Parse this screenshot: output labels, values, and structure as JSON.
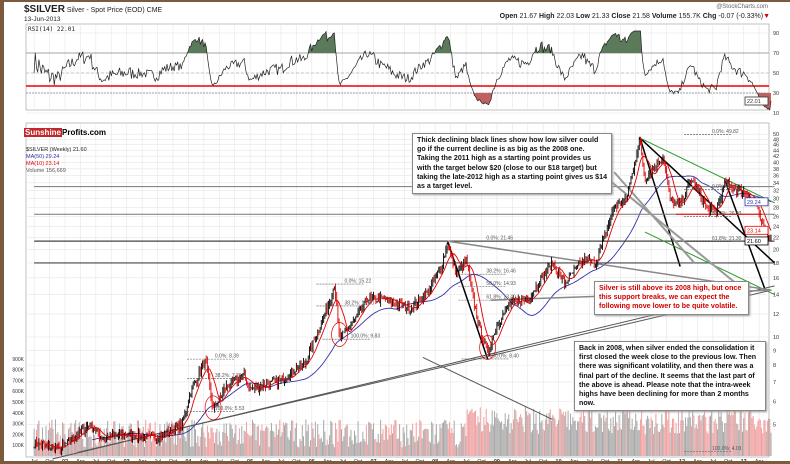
{
  "header": {
    "symbol": "$SILVER",
    "description": "Silver - Spot Price (EOD)",
    "exchange": "CME",
    "date": "13-Jun-2013",
    "credit": "@StockCharts.com",
    "open_label": "Open",
    "open": "21.67",
    "high_label": "High",
    "high": "22.03",
    "low_label": "Low",
    "low": "21.33",
    "close_label": "Close",
    "close": "21.58",
    "volume_label": "Volume",
    "volume": "155.7K",
    "chg_label": "Chg",
    "chg": "-0.07 (-0.33%)"
  },
  "logo": {
    "part1": "Sunshine",
    "part2": "Profits.com"
  },
  "colors": {
    "price": "#000000",
    "ma50": "#3333aa",
    "ma10": "#e00000",
    "vol_up": "#a8a8a8",
    "vol_down": "#f0a0a0",
    "rsi_hi": "#5a7a5a",
    "rsi_lo": "#c06060"
  },
  "chart_data": {
    "type": "line",
    "title": "$SILVER Silver - Spot Price (EOD) CME",
    "rsi": {
      "label": "RSI(14) 22.01",
      "last": "22.01",
      "levels": [
        70,
        30
      ],
      "ticks": [
        "90",
        "70",
        "50",
        "30",
        "10"
      ]
    },
    "legend": {
      "price": "$SILVER (Weekly) 21.60",
      "ma50": "MA(50) 29.24",
      "ma10": "MA(10) 23.14",
      "volume": "Volume 156,669"
    },
    "last_labels": {
      "ma50": "29.24",
      "ma10": "23.14",
      "price": "21.60"
    },
    "price_ticks": [
      "50",
      "48",
      "46",
      "44",
      "42",
      "40",
      "38",
      "36",
      "34",
      "32",
      "30",
      "28",
      "26",
      "24",
      "22",
      "20",
      "18",
      "16",
      "14",
      "12",
      "10",
      "9",
      "8",
      "7",
      "6",
      "5"
    ],
    "volume_ticks": [
      "900K",
      "800K",
      "700K",
      "600K",
      "500K",
      "400K",
      "300K",
      "200K",
      "100K"
    ],
    "x_ticks": [
      [
        "Jul",
        2001.5
      ],
      [
        "Oct",
        2001.75
      ],
      [
        "02",
        2002
      ],
      [
        "Apr",
        2002.25
      ],
      [
        "Jul",
        2002.5
      ],
      [
        "Oct",
        2002.75
      ],
      [
        "03",
        2003
      ],
      [
        "Apr",
        2003.25
      ],
      [
        "Jul",
        2003.5
      ],
      [
        "Oct",
        2003.75
      ],
      [
        "04",
        2004
      ],
      [
        "Apr",
        2004.25
      ],
      [
        "Jul",
        2004.5
      ],
      [
        "Oct",
        2004.75
      ],
      [
        "05",
        2005
      ],
      [
        "Apr",
        2005.25
      ],
      [
        "Jul",
        2005.5
      ],
      [
        "Oct",
        2005.75
      ],
      [
        "06",
        2006
      ],
      [
        "Apr",
        2006.25
      ],
      [
        "Jul",
        2006.5
      ],
      [
        "Oct",
        2006.75
      ],
      [
        "07",
        2007
      ],
      [
        "Apr",
        2007.25
      ],
      [
        "Jul",
        2007.5
      ],
      [
        "Oct",
        2007.75
      ],
      [
        "08",
        2008
      ],
      [
        "Apr",
        2008.25
      ],
      [
        "Jul",
        2008.5
      ],
      [
        "Oct",
        2008.75
      ],
      [
        "09",
        2009
      ],
      [
        "Apr",
        2009.25
      ],
      [
        "Jul",
        2009.5
      ],
      [
        "Oct",
        2009.75
      ],
      [
        "10",
        2010
      ],
      [
        "Apr",
        2010.25
      ],
      [
        "Jul",
        2010.5
      ],
      [
        "Oct",
        2010.75
      ],
      [
        "11",
        2011
      ],
      [
        "Apr",
        2011.25
      ],
      [
        "Jul",
        2011.5
      ],
      [
        "Oct",
        2011.75
      ],
      [
        "12",
        2012
      ],
      [
        "Apr",
        2012.25
      ],
      [
        "Jul",
        2012.5
      ],
      [
        "Oct",
        2012.75
      ],
      [
        "13",
        2013
      ],
      [
        "Apr",
        2013.25
      ]
    ],
    "price_waypoints": [
      [
        2001.5,
        4.3
      ],
      [
        2001.9,
        4.1
      ],
      [
        2002.4,
        5.0
      ],
      [
        2002.6,
        4.5
      ],
      [
        2003.0,
        4.6
      ],
      [
        2003.5,
        4.5
      ],
      [
        2003.9,
        5.0
      ],
      [
        2004.05,
        6.6
      ],
      [
        2004.28,
        8.3
      ],
      [
        2004.4,
        5.6
      ],
      [
        2004.6,
        6.7
      ],
      [
        2004.9,
        7.4
      ],
      [
        2005.0,
        6.6
      ],
      [
        2005.5,
        7.1
      ],
      [
        2005.9,
        8.2
      ],
      [
        2006.3,
        13.5
      ],
      [
        2006.37,
        15.2
      ],
      [
        2006.45,
        9.8
      ],
      [
        2006.7,
        11.5
      ],
      [
        2006.9,
        13.5
      ],
      [
        2007.2,
        13.5
      ],
      [
        2007.6,
        12.5
      ],
      [
        2007.9,
        14.5
      ],
      [
        2008.1,
        17.5
      ],
      [
        2008.2,
        21.0
      ],
      [
        2008.35,
        16.5
      ],
      [
        2008.5,
        18.5
      ],
      [
        2008.7,
        11.0
      ],
      [
        2008.85,
        8.8
      ],
      [
        2009.0,
        11
      ],
      [
        2009.2,
        13
      ],
      [
        2009.5,
        13.5
      ],
      [
        2009.9,
        18
      ],
      [
        2010.1,
        15.3
      ],
      [
        2010.4,
        18.5
      ],
      [
        2010.6,
        18
      ],
      [
        2010.9,
        28
      ],
      [
        2011.1,
        30
      ],
      [
        2011.32,
        48
      ],
      [
        2011.4,
        35
      ],
      [
        2011.6,
        40
      ],
      [
        2011.7,
        42
      ],
      [
        2011.8,
        30
      ],
      [
        2011.95,
        28
      ],
      [
        2012.15,
        35
      ],
      [
        2012.4,
        28
      ],
      [
        2012.55,
        27
      ],
      [
        2012.7,
        34
      ],
      [
        2012.9,
        32
      ],
      [
        2013.05,
        31.5
      ],
      [
        2013.2,
        28.5
      ],
      [
        2013.3,
        24
      ],
      [
        2013.4,
        22.5
      ],
      [
        2013.45,
        21.6
      ]
    ],
    "fib_labels": [
      {
        "text": "0.0%: 8.39",
        "t": 2004.3,
        "p": 8.39
      },
      {
        "text": "38.2%: 7.20",
        "t": 2004.3,
        "p": 7.2
      },
      {
        "text": "100.0%: 5.53",
        "t": 2004.3,
        "p": 5.53
      },
      {
        "text": "0.0%: 15.22",
        "t": 2006.4,
        "p": 15.22
      },
      {
        "text": "38.2%: 12.80",
        "t": 2006.4,
        "p": 12.8
      },
      {
        "text": "100.0%: 9.83",
        "t": 2006.5,
        "p": 9.83
      },
      {
        "text": "0.0%: 21.46",
        "t": 2008.7,
        "p": 21.46
      },
      {
        "text": "38.2%: 16.46",
        "t": 2008.7,
        "p": 16.46
      },
      {
        "text": "50.0%: 14.93",
        "t": 2008.7,
        "p": 14.93
      },
      {
        "text": "61.8%: 13.40",
        "t": 2008.7,
        "p": 13.4
      },
      {
        "text": "100.0%: 8.40",
        "t": 2008.75,
        "p": 8.4
      },
      {
        "text": "0.0%: 49.82",
        "t": 2012.8,
        "p": 49.82
      },
      {
        "text": "0.0%: 32.20",
        "t": 2012.7,
        "p": 32.2
      },
      {
        "text": "50.0%: 26.03",
        "t": 2012.7,
        "p": 26.03
      },
      {
        "text": "61.8%: 21.30",
        "t": 2012.7,
        "p": 21.3
      },
      {
        "text": "100.0%: 4.03",
        "t": 2012.4,
        "p": 4.03
      }
    ],
    "lines": [
      {
        "c": "#000",
        "w": 1.5,
        "a": [
          2008.2,
          21.4
        ],
        "b": [
          2008.85,
          8.4
        ]
      },
      {
        "c": "#000",
        "w": 1.5,
        "a": [
          2011.32,
          48.5
        ],
        "b": [
          2011.97,
          17.5
        ]
      },
      {
        "c": "#000",
        "w": 1.5,
        "a": [
          2012.7,
          34.5
        ],
        "b": [
          2013.35,
          14.5
        ]
      },
      {
        "c": "#000",
        "w": 1.5,
        "a": [
          2011.32,
          48.5
        ],
        "b": [
          2013.5,
          18
        ]
      },
      {
        "c": "#555",
        "w": 1,
        "a": [
          2001.8,
          3.8
        ],
        "b": [
          2013.5,
          15
        ]
      },
      {
        "c": "#555",
        "w": 1,
        "a": [
          2002.2,
          4.0
        ],
        "b": [
          2013.45,
          14.5
        ]
      },
      {
        "c": "#444",
        "w": 1.2,
        "a": [
          2001.5,
          21.4
        ],
        "b": [
          2013.5,
          21.4
        ]
      },
      {
        "c": "#444",
        "w": 1.2,
        "a": [
          2001.5,
          18
        ],
        "b": [
          2013.5,
          18
        ]
      },
      {
        "c": "#777",
        "w": 1,
        "a": [
          2001.5,
          33
        ],
        "b": [
          2013.5,
          33
        ]
      },
      {
        "c": "#777",
        "w": 1,
        "a": [
          2001.5,
          26.5
        ],
        "b": [
          2013.5,
          26.5
        ]
      },
      {
        "c": "#2a9a2a",
        "w": 1,
        "a": [
          2011.32,
          48.5
        ],
        "b": [
          2013.5,
          29
        ]
      },
      {
        "c": "#2a9a2a",
        "w": 1,
        "a": [
          2011.4,
          23
        ],
        "b": [
          2013.5,
          14
        ]
      },
      {
        "c": "#e00",
        "w": 1,
        "a": [
          2011.9,
          26.5
        ],
        "b": [
          2013.3,
          26.5
        ]
      },
      {
        "c": "#888",
        "w": 1.5,
        "a": [
          2008.2,
          21.4
        ],
        "b": [
          2013.45,
          14.5
        ]
      },
      {
        "c": "#888",
        "w": 1.5,
        "a": [
          2008.9,
          13.4
        ],
        "b": [
          2013.45,
          14.5
        ]
      },
      {
        "c": "#999",
        "w": 2,
        "a": [
          2010.9,
          37
        ],
        "b": [
          2012.2,
          18
        ]
      },
      {
        "c": "#999",
        "w": 2,
        "a": [
          2010.8,
          35
        ],
        "b": [
          2013.1,
          14
        ]
      },
      {
        "c": "#555",
        "w": 1,
        "a": [
          2007.8,
          8.5
        ],
        "b": [
          2009.9,
          5.2
        ]
      }
    ]
  },
  "notes": {
    "n1": "Thick declining black lines show how low silver could go if the current decline is as big as the 2008 one. Taking the 2011 high as a starting point provides us with the target below $20 (close to our $18 target) but taking the late-2012 high as a starting point gives us $14 as a target level.",
    "n2": "Silver is still above its 2008 high, but once this support breaks, we can expect the following move lower to be quite volatile.",
    "n3": "Back in 2008, when silver ended the consolidation it first closed the week close to the previous low. Then there was significant volatility, and then there was a final part of the decline. It seems that the last part of the above is ahead. Please note that the intra-week highs have been declining for more than 2 months now."
  }
}
